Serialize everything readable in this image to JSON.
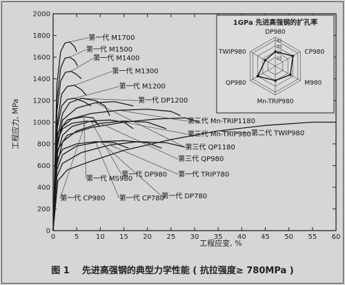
{
  "figure": {
    "number": "图 1",
    "caption": "先进高强钢的典型力学性能 ( 抗拉强度≥ 780MPa )"
  },
  "chart_data": [
    {
      "type": "line",
      "xlabel": "工程应变, %",
      "ylabel": "工程应力, MPa",
      "xlim": [
        0,
        60
      ],
      "ylim": [
        0,
        2000
      ],
      "xticks": [
        0,
        5,
        10,
        15,
        20,
        25,
        30,
        35,
        40,
        45,
        50,
        55,
        60
      ],
      "yticks": [
        0,
        200,
        400,
        600,
        800,
        1000,
        1200,
        1400,
        1600,
        1800,
        2000
      ],
      "grid": false,
      "series": [
        {
          "name": "第一代 M1700",
          "x": [
            0,
            0.8,
            1.6,
            2.5,
            3.5,
            4.5,
            5.0
          ],
          "y": [
            0,
            1350,
            1650,
            1730,
            1740,
            1700,
            1650
          ]
        },
        {
          "name": "第一代 M1500",
          "x": [
            0,
            0.8,
            1.6,
            2.5,
            3.5,
            4.5,
            5.2
          ],
          "y": [
            0,
            1200,
            1500,
            1590,
            1600,
            1570,
            1520
          ]
        },
        {
          "name": "第一代 M1400",
          "x": [
            0,
            0.8,
            1.6,
            2.6,
            3.8,
            5.0,
            6.0
          ],
          "y": [
            0,
            1100,
            1380,
            1460,
            1470,
            1440,
            1400
          ]
        },
        {
          "name": "第一代 M1300",
          "x": [
            0,
            0.9,
            1.8,
            3.0,
            4.5,
            6.0,
            7.0
          ],
          "y": [
            0,
            1000,
            1260,
            1330,
            1340,
            1300,
            1250
          ]
        },
        {
          "name": "第一代 M1200",
          "x": [
            0,
            0.9,
            1.8,
            3.0,
            4.5,
            6.5,
            8.0
          ],
          "y": [
            0,
            950,
            1150,
            1210,
            1220,
            1190,
            1150
          ]
        },
        {
          "name": "第一代 DP1200",
          "x": [
            0,
            0.9,
            2.0,
            3.5,
            6.0,
            9.0,
            11.0,
            12.0
          ],
          "y": [
            0,
            850,
            1080,
            1180,
            1220,
            1200,
            1150,
            1060
          ]
        },
        {
          "name": "第一代 MS980",
          "x": [
            0,
            0.8,
            2.0,
            4.0,
            6.5,
            8.5,
            9.5
          ],
          "y": [
            0,
            800,
            960,
            1030,
            1050,
            1040,
            980
          ]
        },
        {
          "name": "第一代 CP980",
          "x": [
            0,
            0.8,
            2.0,
            4.0,
            7.0,
            9.0,
            10.0
          ],
          "y": [
            0,
            820,
            940,
            990,
            1010,
            1000,
            960
          ]
        },
        {
          "name": "第一代 DP980",
          "x": [
            0,
            0.8,
            2.0,
            4.0,
            8.0,
            12.0,
            15.0,
            17.0
          ],
          "y": [
            0,
            700,
            880,
            960,
            1010,
            1020,
            1000,
            940
          ]
        },
        {
          "name": "第一代 CP780",
          "x": [
            0,
            0.8,
            2.0,
            5.0,
            9.0,
            13.0,
            16.0
          ],
          "y": [
            0,
            650,
            750,
            800,
            820,
            810,
            760
          ]
        },
        {
          "name": "第一代 DP780",
          "x": [
            0,
            0.8,
            2.0,
            5.0,
            10.0,
            15.0,
            20.0,
            23.0
          ],
          "y": [
            0,
            560,
            700,
            780,
            820,
            830,
            810,
            760
          ]
        },
        {
          "name": "第一代 TRIP780",
          "x": [
            0,
            0.8,
            2.0,
            6.0,
            12.0,
            18.0,
            24.0,
            28.0
          ],
          "y": [
            0,
            500,
            620,
            720,
            790,
            820,
            810,
            770
          ]
        },
        {
          "name": "第三代 QP980",
          "x": [
            0,
            0.8,
            2.0,
            5.0,
            10.0,
            15.0,
            20.0,
            24.0
          ],
          "y": [
            0,
            600,
            820,
            920,
            990,
            1010,
            1000,
            940
          ]
        },
        {
          "name": "第三代 QP1180",
          "x": [
            0,
            0.8,
            2.0,
            5.0,
            9.0,
            13.0,
            17.0
          ],
          "y": [
            0,
            750,
            1020,
            1130,
            1180,
            1190,
            1150
          ]
        },
        {
          "name": "第三代 Mn-TRIP980",
          "x": [
            0,
            1.0,
            3.0,
            8.0,
            15.0,
            22.0,
            28.0,
            31.0
          ],
          "y": [
            0,
            750,
            880,
            950,
            1000,
            1030,
            1040,
            1000
          ]
        },
        {
          "name": "第三代 Mn-TRIP1180",
          "x": [
            0,
            1.0,
            3.0,
            8.0,
            14.0,
            20.0,
            25.0,
            27.0
          ],
          "y": [
            0,
            900,
            1020,
            1080,
            1110,
            1120,
            1100,
            1060
          ]
        },
        {
          "name": "第二代 TWIP980",
          "x": [
            0,
            1.0,
            3.0,
            8.0,
            15.0,
            25.0,
            35.0,
            45.0,
            55.0,
            60.0
          ],
          "y": [
            0,
            460,
            560,
            640,
            740,
            840,
            920,
            970,
            1000,
            1000
          ]
        }
      ]
    },
    {
      "type": "radar",
      "title": "1GPa 先进高强钢的扩孔率",
      "axes": [
        "DP980",
        "CP980",
        "M980",
        "Mn-TRIP980",
        "QP980",
        "TWIP980"
      ],
      "ring_labels": [
        "15",
        "25",
        "35",
        "45"
      ],
      "values": [
        25,
        35,
        30,
        25,
        35,
        20
      ]
    }
  ]
}
